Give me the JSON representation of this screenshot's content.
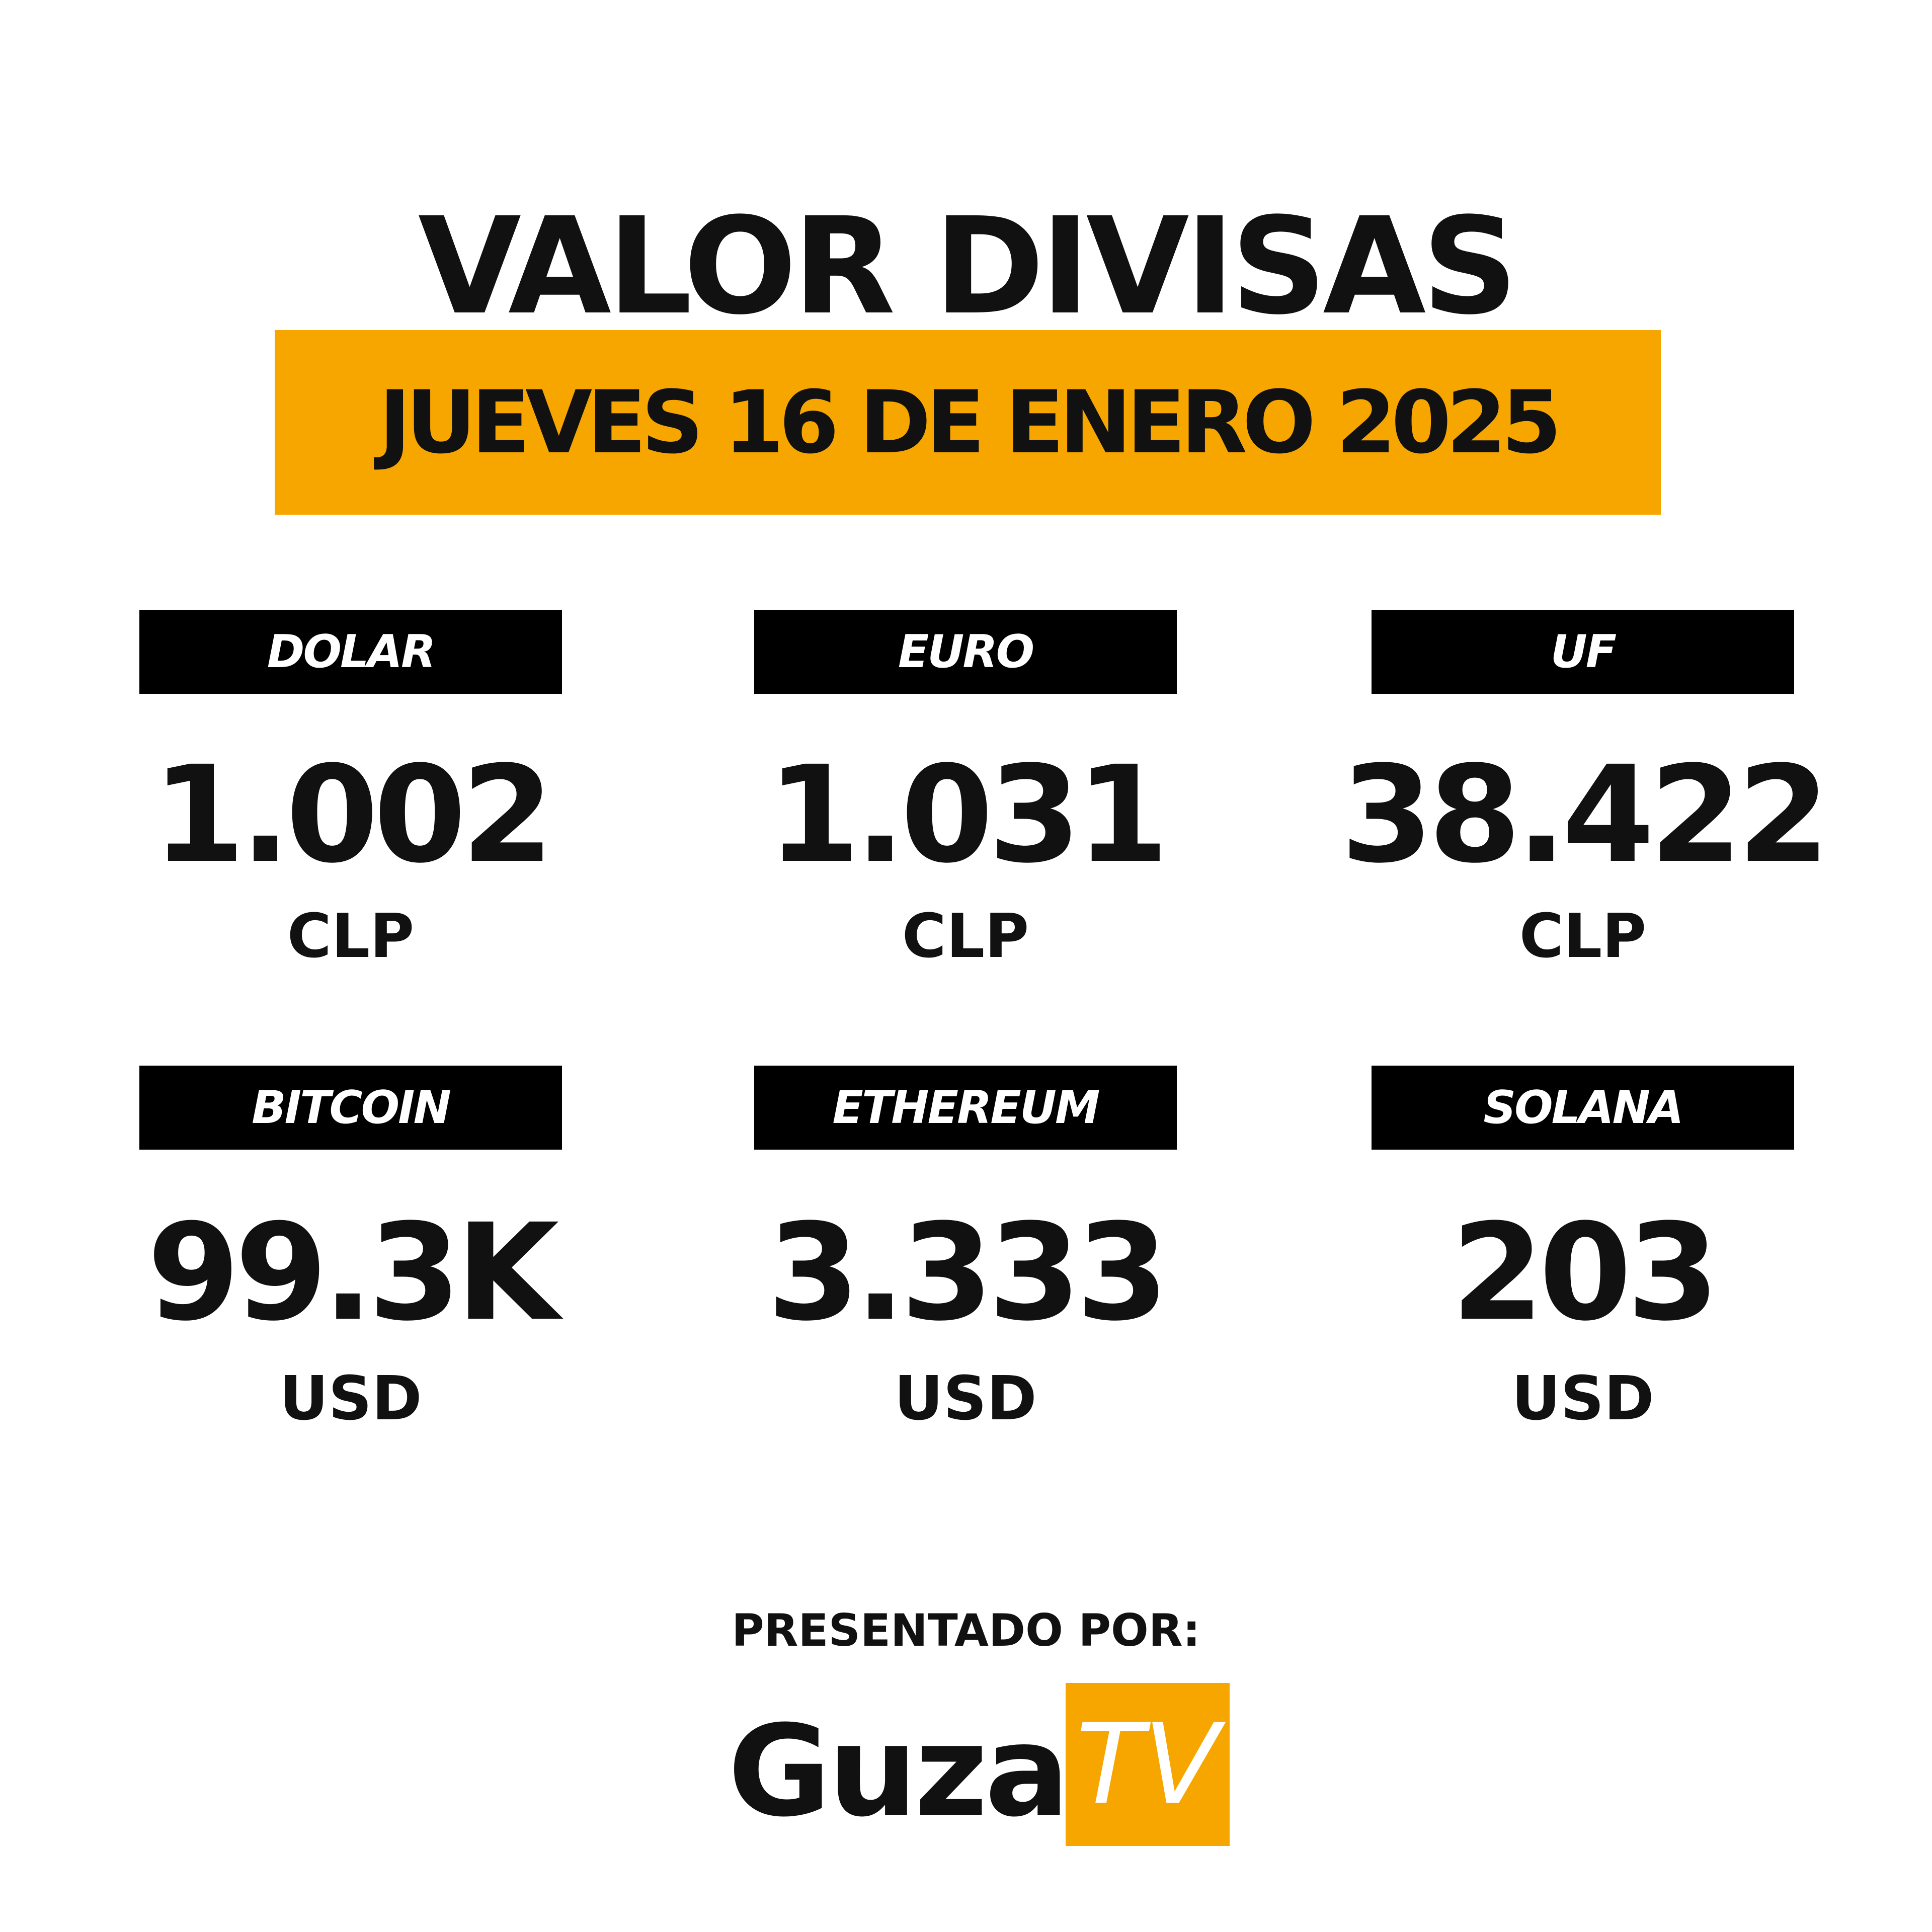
{
  "header": {
    "title": "VALOR DIVISAS",
    "date": "JUEVES 16 DE ENERO 2025"
  },
  "items": [
    {
      "label": "DOLAR",
      "value": "1.002",
      "unit": "CLP"
    },
    {
      "label": "EURO",
      "value": "1.031",
      "unit": "CLP"
    },
    {
      "label": "UF",
      "value": "38.422",
      "unit": "CLP"
    },
    {
      "label": "BITCOIN",
      "value": "99.3K",
      "unit": "USD"
    },
    {
      "label": "ETHEREUM",
      "value": "3.333",
      "unit": "USD"
    },
    {
      "label": "SOLANA",
      "value": "203",
      "unit": "USD"
    }
  ],
  "footer": {
    "presented_by": "PRESENTADO POR:",
    "brand": "Guza",
    "brand_tag": "TV"
  }
}
